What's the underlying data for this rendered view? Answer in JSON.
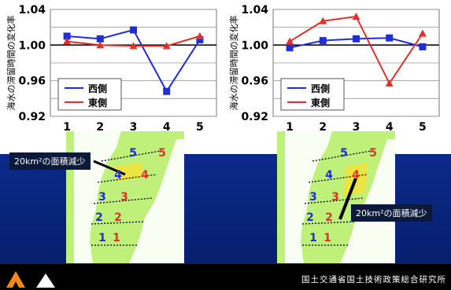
{
  "colors": {
    "west": "#1f2ed8",
    "east": "#e0302a",
    "map_land": "#ffffff",
    "map_bg": "#bff07a"
  },
  "chart_data": [
    {
      "type": "line",
      "ylabel": "海水の滞留時間の変化率",
      "x": [
        1,
        2,
        3,
        4,
        5
      ],
      "ylim": [
        0.92,
        1.04
      ],
      "yticks": [
        "0.92",
        "0.96",
        "1.00",
        "1.04"
      ],
      "xticks": [
        "1",
        "2",
        "3",
        "4",
        "5"
      ],
      "legend_position": "bottom-left",
      "series": [
        {
          "name": "西側",
          "marker": "square",
          "values": [
            1.01,
            1.007,
            1.017,
            0.948,
            1.006
          ]
        },
        {
          "name": "東側",
          "marker": "triangle",
          "values": [
            1.004,
            1.0,
            0.999,
            0.999,
            1.01
          ]
        }
      ]
    },
    {
      "type": "line",
      "ylabel": "海水の滞留時間の変化率",
      "x": [
        1,
        2,
        3,
        4,
        5
      ],
      "ylim": [
        0.92,
        1.04
      ],
      "yticks": [
        "0.92",
        "0.96",
        "1.00",
        "1.04"
      ],
      "xticks": [
        "1",
        "2",
        "3",
        "4",
        "5"
      ],
      "legend_position": "bottom-left",
      "series": [
        {
          "name": "西側",
          "marker": "square",
          "values": [
            0.997,
            1.005,
            1.007,
            1.008,
            0.998
          ]
        },
        {
          "name": "東側",
          "marker": "triangle",
          "values": [
            1.004,
            1.027,
            1.032,
            0.957,
            1.013
          ]
        }
      ]
    }
  ],
  "maps": {
    "left": {
      "callout": "20km²の面積減少",
      "west_labels": [
        "5",
        "4",
        "3",
        "2",
        "1"
      ],
      "east_labels": [
        "5",
        "4",
        "3",
        "2",
        "1"
      ]
    },
    "right": {
      "callout": "20km²の面積減少",
      "west_labels": [
        "5",
        "4",
        "3",
        "2",
        "1"
      ],
      "east_labels": [
        "5",
        "4",
        "3",
        "2",
        "1"
      ]
    }
  },
  "footer": {
    "org": "国土交通省国土技術政策総合研究所"
  }
}
